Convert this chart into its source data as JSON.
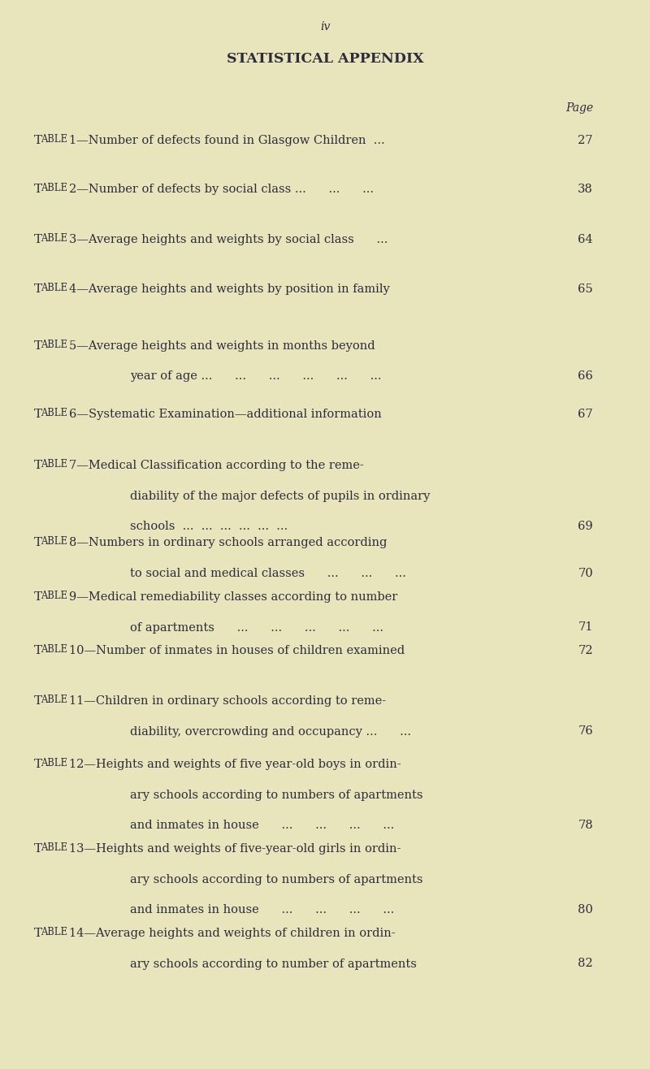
{
  "background_color": "#e8e4bc",
  "page_number": "iv",
  "title": "STATISTICAL APPENDIX",
  "page_label": "Page",
  "text_color": "#2c2c3c",
  "entries": [
    {
      "first_line": "1—Number of defects found in Glasgow Children  ...",
      "continuation": [],
      "page": "27"
    },
    {
      "first_line": "2—Number of defects by social class ...      ...      ...",
      "continuation": [],
      "page": "38"
    },
    {
      "first_line": "3—Average heights and weights by social class      ...",
      "continuation": [],
      "page": "64"
    },
    {
      "first_line": "4—Average heights and weights by position in family",
      "continuation": [],
      "page": "65"
    },
    {
      "first_line": "5—Average heights and weights in months beyond",
      "continuation": [
        "year of age ...      ...      ...      ...      ...      ..."
      ],
      "page": "66"
    },
    {
      "first_line": "6—Systematic Examination—additional information",
      "continuation": [],
      "page": "67"
    },
    {
      "first_line": "7—Medical Classification according to the reme-",
      "continuation": [
        "diability of the major defects of pupils in ordinary",
        "schools  ...  ...  ...  ...  ...  ..."
      ],
      "page": "69"
    },
    {
      "first_line": "8—Numbers in ordinary schools arranged according",
      "continuation": [
        "to social and medical classes      ...      ...      ..."
      ],
      "page": "70"
    },
    {
      "first_line": "9—Medical remediability classes according to number",
      "continuation": [
        "of apartments      ...      ...      ...      ...      ..."
      ],
      "page": "71"
    },
    {
      "first_line": "10—Number of inmates in houses of children examined",
      "continuation": [],
      "page": "72"
    },
    {
      "first_line": "11—Children in ordinary schools according to reme-",
      "continuation": [
        "diability, overcrowding and occupancy ...      ..."
      ],
      "page": "76"
    },
    {
      "first_line": "12—Heights and weights of five year-old boys in ordin-",
      "continuation": [
        "ary schools according to numbers of apartments",
        "and inmates in house      ...      ...      ...      ..."
      ],
      "page": "78"
    },
    {
      "first_line": "13—Heights and weights of five-year-old girls in ordin-",
      "continuation": [
        "ary schools according to numbers of apartments",
        "and inmates in house      ...      ...      ...      ..."
      ],
      "page": "80"
    },
    {
      "first_line": "14—Average heights and weights of children in ordin-",
      "continuation": [
        "ary schools according to number of apartments"
      ],
      "page": "82"
    }
  ]
}
